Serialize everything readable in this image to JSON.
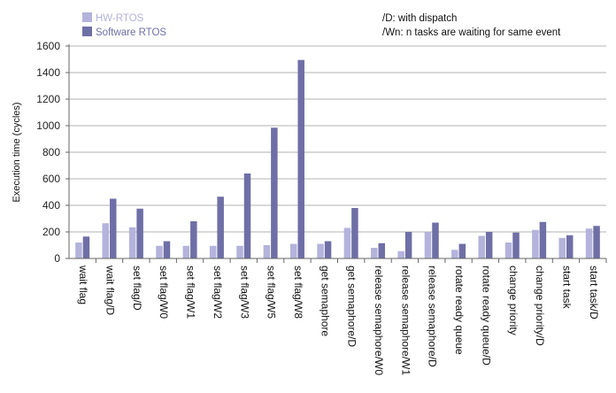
{
  "chart_data": {
    "type": "bar",
    "title": "",
    "xlabel": "",
    "ylabel": "Execution time (cycles)",
    "ylim": [
      0,
      1600
    ],
    "yticks": [
      0,
      200,
      400,
      600,
      800,
      1000,
      1200,
      1400,
      1600
    ],
    "grid": true,
    "legend_position": "top-left",
    "categories": [
      "wait flag",
      "wait flag/D",
      "set flag/D",
      "set flag/W0",
      "set flag/W1",
      "set flag/W2",
      "set flag/W3",
      "set flag/W5",
      "set flag/W8",
      "get semaphore",
      "get semaphore/D",
      "release semaphore/W0",
      "release semaphore/W1",
      "release semaphore/D",
      "rotate ready queue",
      "rotate ready queue/D",
      "change priority",
      "change priority/D",
      "start task",
      "start task/D"
    ],
    "series": [
      {
        "name": "HW-RTOS",
        "color": "#b3b3dc",
        "values": [
          120,
          265,
          235,
          95,
          95,
          95,
          95,
          100,
          110,
          110,
          230,
          80,
          55,
          200,
          65,
          170,
          120,
          215,
          155,
          225
        ]
      },
      {
        "name": "Software RTOS",
        "color": "#6f6fa7",
        "values": [
          165,
          450,
          375,
          130,
          280,
          465,
          640,
          985,
          1495,
          130,
          380,
          115,
          200,
          270,
          110,
          200,
          195,
          275,
          175,
          245
        ]
      }
    ]
  },
  "notes": [
    "/D: with dispatch",
    "/Wn: n tasks are waiting for same event"
  ],
  "colors": {
    "grid": "#9a9a9a",
    "axis": "#666666"
  }
}
